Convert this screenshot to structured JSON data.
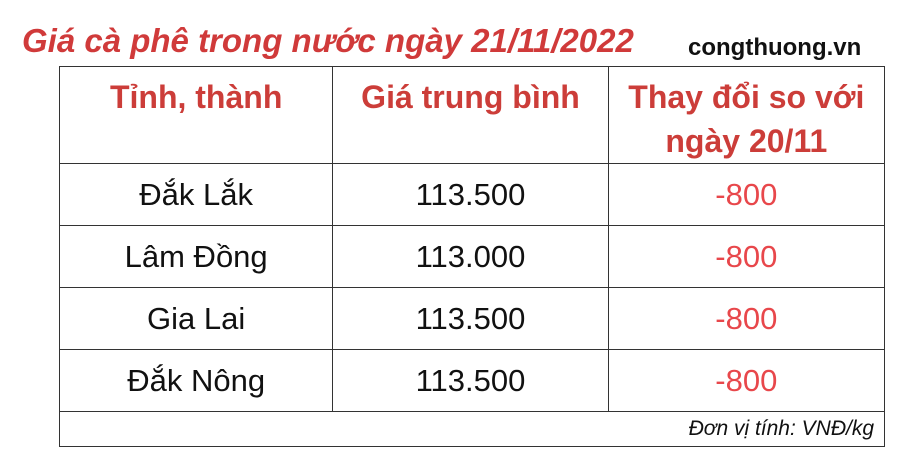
{
  "title": "Giá cà phê trong nước ngày 21/11/2022",
  "source": "congthuong.vn",
  "table": {
    "headers": [
      "Tỉnh, thành",
      "Giá trung bình",
      "Thay đổi so với ngày 20/11"
    ],
    "rows": [
      {
        "province": "Đắk Lắk",
        "price": "113.500",
        "change": "-800"
      },
      {
        "province": "Lâm Đồng",
        "price": "113.000",
        "change": "-800"
      },
      {
        "province": "Gia Lai",
        "price": "113.500",
        "change": "-800"
      },
      {
        "province": "Đắk Nông",
        "price": "113.500",
        "change": "-800"
      }
    ],
    "unit_note": "Đơn vị tính: VNĐ/kg"
  },
  "colors": {
    "title": "#d03a3a",
    "header": "#cc3d39",
    "change": "#e8474b"
  }
}
